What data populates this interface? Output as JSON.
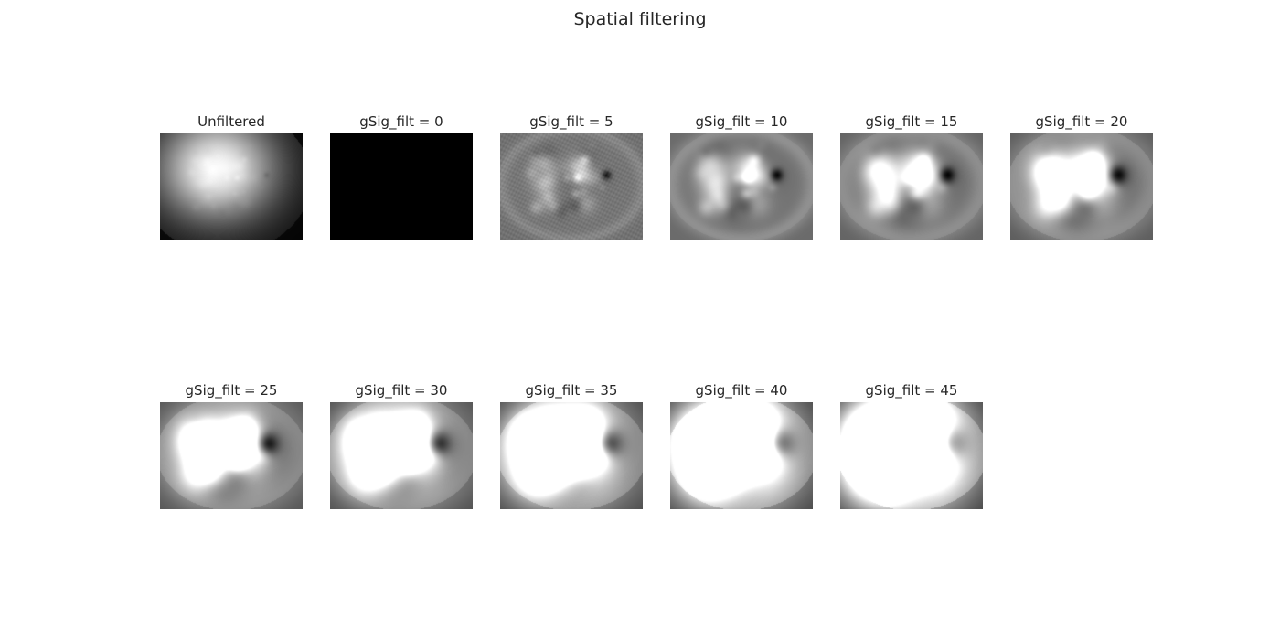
{
  "figure": {
    "title": "Spatial filtering"
  },
  "panels": [
    {
      "title": "Unfiltered",
      "kind": "raw",
      "blur": 0
    },
    {
      "title": "gSig_filt = 0",
      "kind": "black",
      "blur": 0
    },
    {
      "title": "gSig_filt = 5",
      "kind": "filtered",
      "blur": 5
    },
    {
      "title": "gSig_filt = 10",
      "kind": "filtered",
      "blur": 10
    },
    {
      "title": "gSig_filt = 15",
      "kind": "filtered",
      "blur": 15
    },
    {
      "title": "gSig_filt = 20",
      "kind": "filtered",
      "blur": 20
    },
    {
      "title": "gSig_filt = 25",
      "kind": "filtered",
      "blur": 25
    },
    {
      "title": "gSig_filt = 30",
      "kind": "filtered",
      "blur": 30
    },
    {
      "title": "gSig_filt = 35",
      "kind": "filtered",
      "blur": 35
    },
    {
      "title": "gSig_filt = 40",
      "kind": "filtered",
      "blur": 40
    },
    {
      "title": "gSig_filt = 45",
      "kind": "filtered",
      "blur": 45
    }
  ],
  "colors": {
    "text": "#262626",
    "background": "#ffffff",
    "colormap": "gray"
  }
}
